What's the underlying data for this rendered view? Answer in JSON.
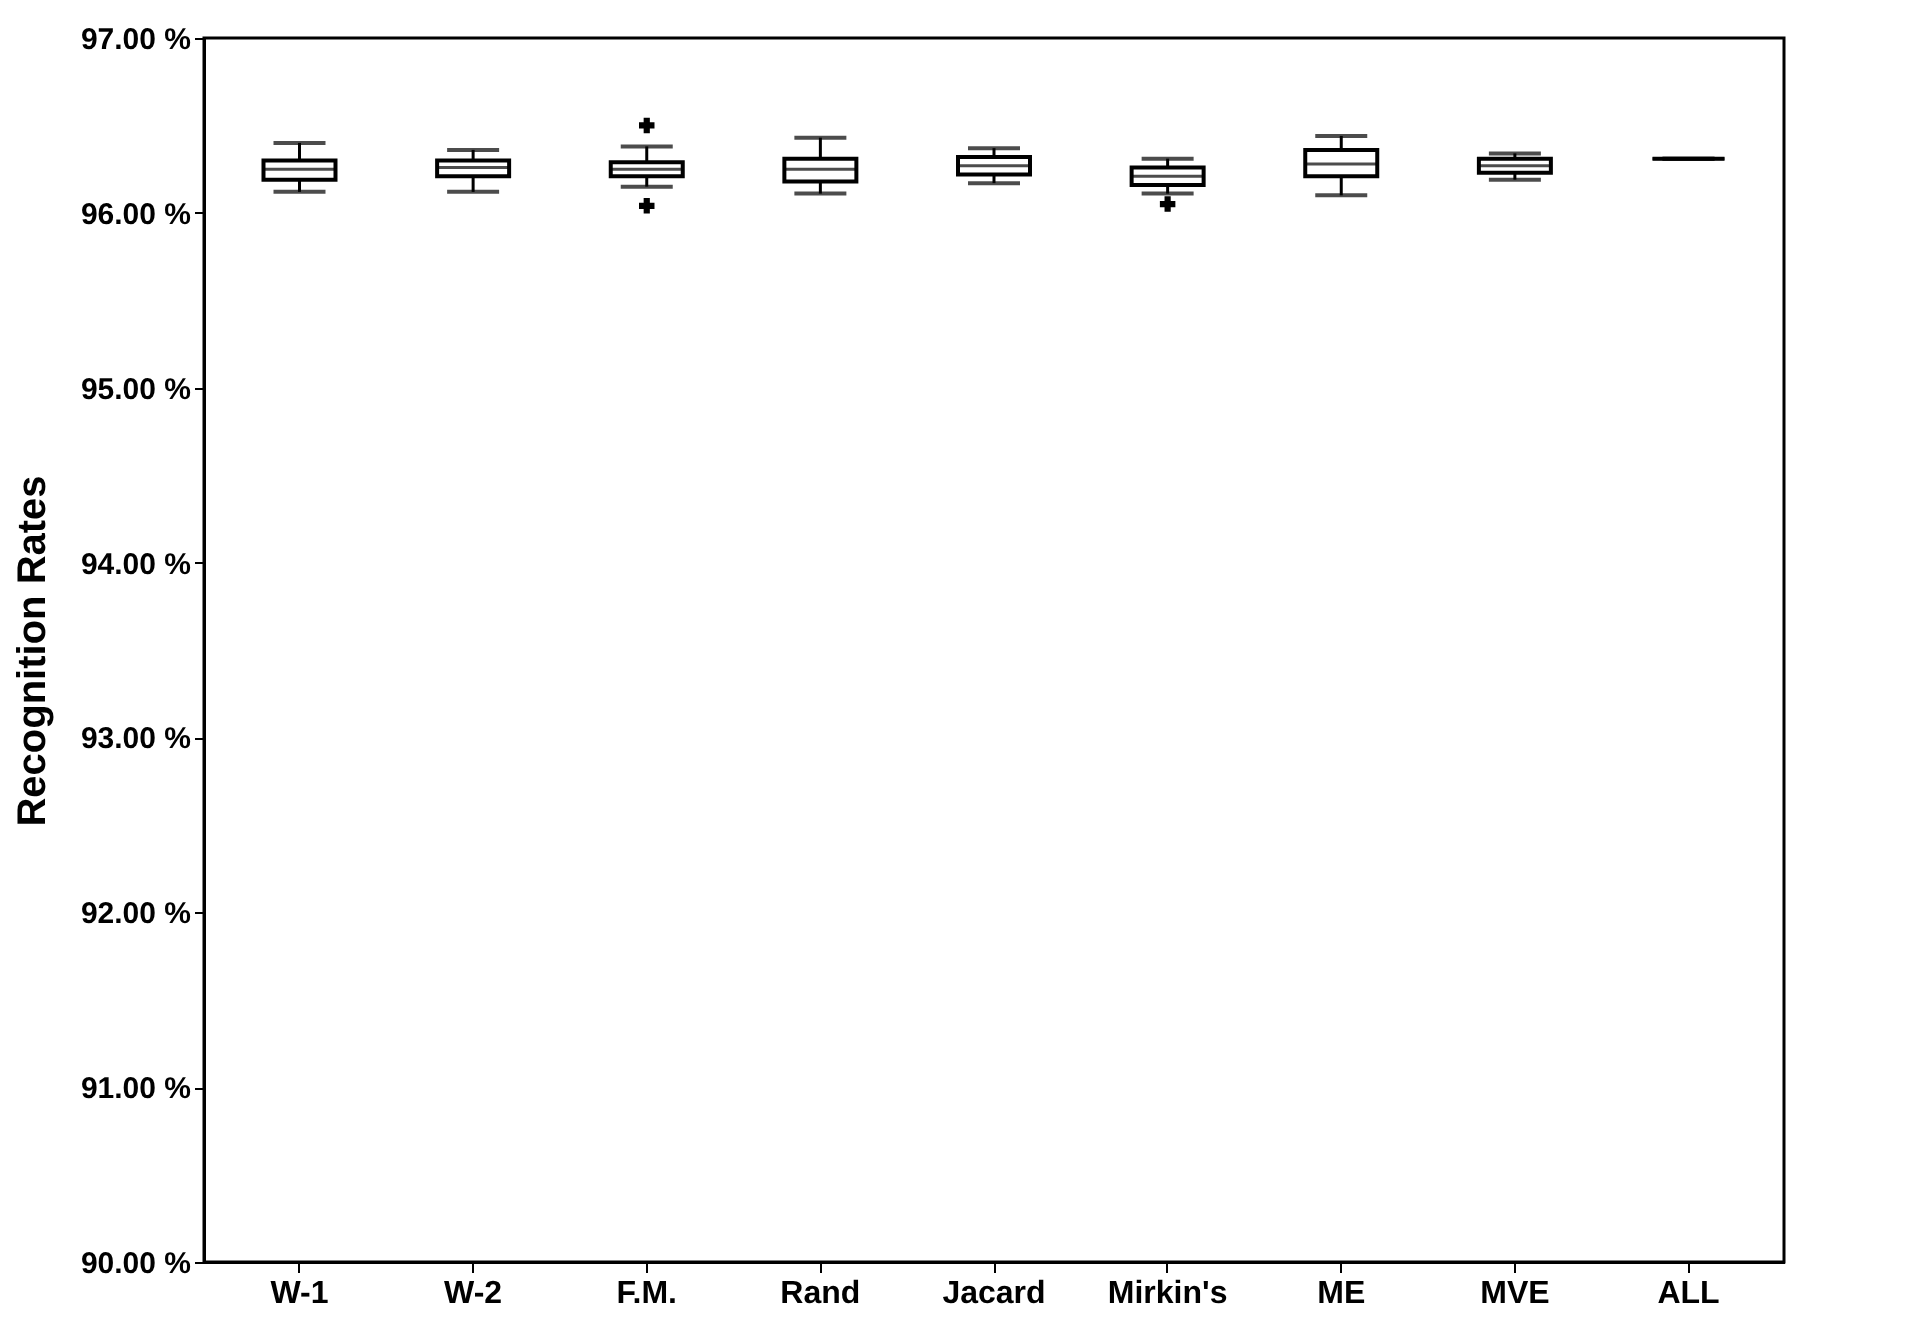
{
  "chart_data": {
    "type": "box",
    "ylabel": "Recognition Rates",
    "categories": [
      "W-1",
      "W-2",
      "F.M.",
      "Rand",
      "Jacard",
      "Mirkin's",
      "ME",
      "MVE",
      "ALL"
    ],
    "boxes": [
      {
        "low": 96.12,
        "q1": 96.19,
        "median": 96.25,
        "q3": 96.3,
        "high": 96.4
      },
      {
        "low": 96.12,
        "q1": 96.21,
        "median": 96.26,
        "q3": 96.3,
        "high": 96.36
      },
      {
        "low": 96.15,
        "q1": 96.21,
        "median": 96.25,
        "q3": 96.29,
        "high": 96.38,
        "outliers": [
          96.5,
          96.04
        ]
      },
      {
        "low": 96.11,
        "q1": 96.18,
        "median": 96.25,
        "q3": 96.31,
        "high": 96.43
      },
      {
        "low": 96.17,
        "q1": 96.22,
        "median": 96.27,
        "q3": 96.32,
        "high": 96.37
      },
      {
        "low": 96.11,
        "q1": 96.16,
        "median": 96.21,
        "q3": 96.26,
        "high": 96.31,
        "outliers": [
          96.05
        ]
      },
      {
        "low": 96.1,
        "q1": 96.21,
        "median": 96.28,
        "q3": 96.36,
        "high": 96.44
      },
      {
        "low": 96.19,
        "q1": 96.23,
        "median": 96.27,
        "q3": 96.31,
        "high": 96.34
      },
      {
        "low": 96.31,
        "q1": 96.31,
        "median": 96.31,
        "q3": 96.31,
        "high": 96.31
      }
    ],
    "ylim": [
      90,
      97
    ],
    "yticks": [
      {
        "value": 90,
        "label": "90.00 %"
      },
      {
        "value": 91,
        "label": "91.00 %"
      },
      {
        "value": 92,
        "label": "92.00 %"
      },
      {
        "value": 93,
        "label": "93.00 %"
      },
      {
        "value": 94,
        "label": "94.00 %"
      },
      {
        "value": 95,
        "label": "95.00 %"
      },
      {
        "value": 96,
        "label": "96.00 %"
      },
      {
        "value": 97,
        "label": "97.00 %"
      }
    ],
    "grid": false
  }
}
